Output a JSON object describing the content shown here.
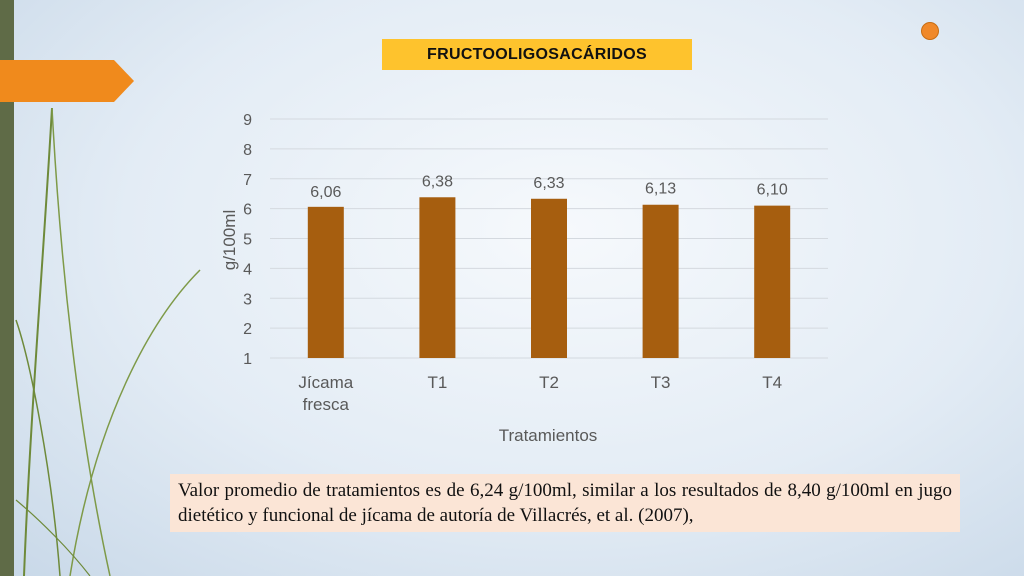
{
  "slide": {
    "title": "FRUCTOOLIGOSACÁRIDOS",
    "note": "Valor promedio de tratamientos es de 6,24 g/100ml, similar a los resultados de 8,40 g/100ml en jugo dietético y funcional de jícama de autoría de Villacrés, et al. (2007),"
  },
  "colors": {
    "bar": "#a65e0f",
    "accent_orange": "#f08a1c",
    "title_fill": "#fec32d",
    "note_fill": "#fbe5d6",
    "strip_green": "#5f6b47"
  },
  "icons": [
    "orange-dot-icon",
    "orange-arrow-tab"
  ],
  "chart_data": {
    "type": "bar",
    "categories": [
      "Jícama fresca",
      "T1",
      "T2",
      "T3",
      "T4"
    ],
    "category_lines": [
      [
        "Jícama",
        "fresca"
      ],
      [
        "T1"
      ],
      [
        "T2"
      ],
      [
        "T3"
      ],
      [
        "T4"
      ]
    ],
    "values": [
      6.06,
      6.38,
      6.33,
      6.13,
      6.1
    ],
    "value_labels": [
      "6,06",
      "6,38",
      "6,33",
      "6,13",
      "6,10"
    ],
    "xlabel": "Tratamientos",
    "ylabel": "g/100ml",
    "ylim": [
      1,
      9
    ],
    "yticks": [
      1,
      2,
      3,
      4,
      5,
      6,
      7,
      8,
      9
    ],
    "grid": true,
    "legend": "none"
  }
}
